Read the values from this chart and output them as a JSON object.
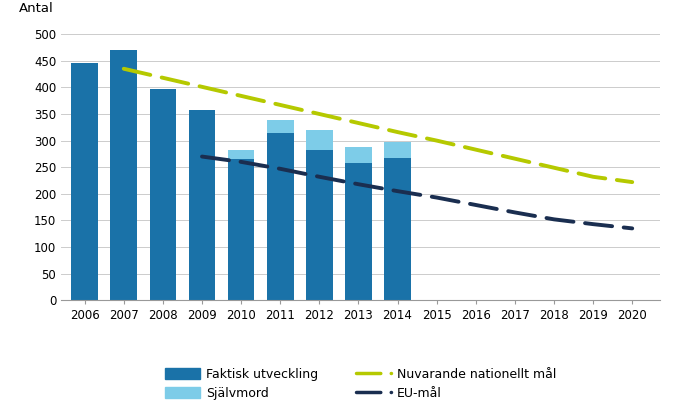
{
  "years_bars": [
    2006,
    2007,
    2008,
    2009,
    2010,
    2011,
    2012,
    2013,
    2014
  ],
  "faktisk_utveckling": [
    445,
    470,
    397,
    357,
    265,
    315,
    283,
    258,
    268
  ],
  "sjalvmord_extra": [
    0,
    0,
    0,
    0,
    18,
    23,
    37,
    30,
    30
  ],
  "bar_color_dark": "#1a72a8",
  "bar_color_light": "#7dcce8",
  "nuvarande_x": [
    2007,
    2008,
    2009,
    2010,
    2011,
    2012,
    2013,
    2014,
    2015,
    2016,
    2017,
    2018,
    2019,
    2020
  ],
  "nuvarande_y": [
    435,
    418,
    401,
    384,
    367,
    350,
    333,
    316,
    300,
    283,
    266,
    249,
    232,
    222
  ],
  "eu_x": [
    2009,
    2010,
    2011,
    2012,
    2013,
    2014,
    2015,
    2016,
    2017,
    2018,
    2019,
    2020
  ],
  "eu_y": [
    270,
    260,
    247,
    232,
    218,
    205,
    193,
    179,
    165,
    152,
    143,
    135
  ],
  "ylabel": "Antal",
  "ylim": [
    0,
    525
  ],
  "yticks": [
    0,
    50,
    100,
    150,
    200,
    250,
    300,
    350,
    400,
    450,
    500
  ],
  "xlim": [
    2005.4,
    2020.7
  ],
  "xticks": [
    2006,
    2007,
    2008,
    2009,
    2010,
    2011,
    2012,
    2013,
    2014,
    2015,
    2016,
    2017,
    2018,
    2019,
    2020
  ],
  "legend_faktisk": "Faktisk utveckling",
  "legend_sjalvmord": "Självmord",
  "legend_nuvarande": "Nuvarande nationellt mål",
  "legend_eu": "EU-mål",
  "nuvarande_color": "#b5c900",
  "eu_color": "#1a2e50",
  "background_color": "#ffffff",
  "grid_color": "#cccccc"
}
